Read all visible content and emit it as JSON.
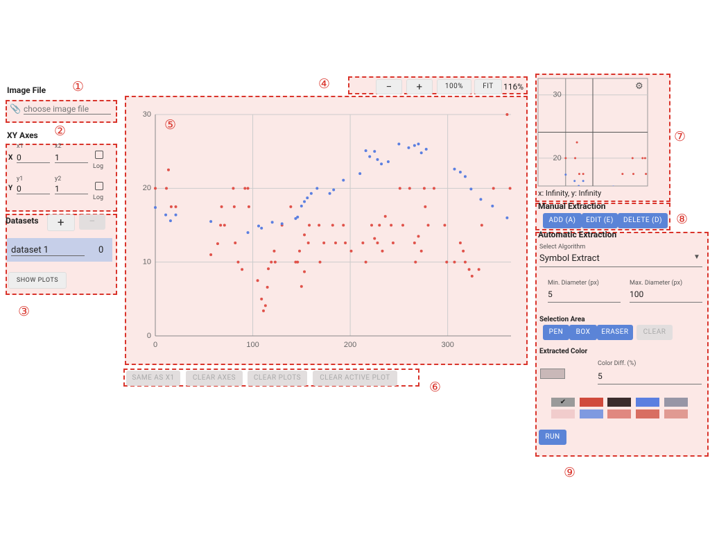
{
  "annotations": [
    "①",
    "②",
    "③",
    "④",
    "⑤",
    "⑥",
    "⑦",
    "⑧",
    "⑨"
  ],
  "image_file": {
    "title": "Image File",
    "placeholder": "choose image file"
  },
  "xy_axes": {
    "title": "XY Axes",
    "x_label": "X",
    "x1_label": "x1",
    "x1": "0",
    "x2_label": "x2",
    "x2": "1",
    "x_log": "Log",
    "y_label": "Y",
    "y1_label": "y1",
    "y1": "0",
    "y2_label": "y2",
    "y2": "1",
    "y_log": "Log"
  },
  "datasets": {
    "title": "Datasets",
    "add": "+",
    "remove": "—",
    "items": [
      {
        "name": "dataset 1",
        "count": "0"
      }
    ],
    "show_plots": "SHOW PLOTS"
  },
  "zoom": {
    "buttons": [
      "−",
      "+",
      "100%",
      "FIT"
    ],
    "level": "116%"
  },
  "plot": {
    "type": "scatter",
    "xlim": [
      0,
      365
    ],
    "ylim": [
      0,
      30
    ],
    "xticks": [
      0,
      100,
      200,
      300
    ],
    "yticks": [
      0,
      10,
      20,
      30
    ],
    "grid": true,
    "series": [
      {
        "color": "#e0524a",
        "x": [
          0,
          11.4,
          13.5,
          16.3,
          21,
          57,
          64,
          67,
          71,
          68,
          80,
          81,
          82,
          85,
          89,
          92,
          95,
          96,
          105,
          109,
          111,
          113,
          115,
          116,
          119,
          122,
          123,
          130,
          139,
          144,
          148,
          146,
          150,
          153,
          153,
          158,
          157,
          168,
          169,
          173,
          182,
          185,
          193,
          195,
          201,
          213,
          216,
          222,
          225,
          228,
          230,
          233,
          236,
          242,
          244,
          251,
          254,
          261,
          266,
          267,
          270,
          273,
          276,
          277,
          280,
          286,
          297,
          299,
          307,
          313,
          316,
          318,
          322,
          325,
          332,
          335,
          347,
          361,
          364
        ],
        "values": [
          20,
          20,
          22.5,
          17.5,
          17.5,
          11,
          12.5,
          15,
          15,
          17.5,
          20,
          17.5,
          12.6,
          10,
          9,
          20,
          20,
          17.5,
          7.5,
          5,
          3.4,
          4.1,
          6.6,
          9.1,
          10,
          11.5,
          10,
          15,
          17.5,
          10,
          11.5,
          10,
          6.7,
          8.7,
          13.7,
          15,
          12.6,
          15,
          10,
          12.6,
          15,
          12.6,
          15,
          12.6,
          11.5,
          12.6,
          10,
          15,
          13.2,
          12.6,
          15,
          11.5,
          16.2,
          15,
          12.6,
          20,
          15,
          20,
          12.6,
          10,
          13.5,
          11.5,
          20,
          17.5,
          15,
          20,
          15,
          10,
          10,
          12.6,
          11.5,
          10,
          9,
          8.1,
          9,
          15,
          20,
          30,
          20
        ]
      },
      {
        "color": "#5b7fe0",
        "x": [
          0,
          10.7,
          15.6,
          21,
          57,
          95,
          106,
          109,
          120,
          130,
          144,
          146,
          150,
          153,
          156,
          160,
          166,
          179,
          183,
          193,
          210,
          216,
          220,
          225,
          228,
          232,
          239,
          250,
          260,
          266,
          270,
          273,
          278,
          307,
          313,
          318,
          324,
          334,
          346,
          361
        ],
        "values": [
          17.4,
          16.4,
          15.6,
          16.4,
          15.5,
          14,
          14.9,
          14.6,
          15.4,
          15.2,
          15.9,
          16.1,
          17.6,
          18.2,
          18.7,
          19.3,
          20,
          19.3,
          19.8,
          21.1,
          22,
          25.1,
          24.3,
          25,
          23.9,
          23.3,
          23.6,
          26,
          25.5,
          25.8,
          26,
          24.8,
          25.3,
          22.6,
          22.2,
          21.6,
          19.9,
          18.5,
          17.6,
          16
        ]
      }
    ]
  },
  "bottom_buttons": [
    "SAME AS X1",
    "CLEAR AXES",
    "CLEAR PLOTS",
    "CLEAR ACTIVE PLOT"
  ],
  "magnifier": {
    "xlim": [
      -33,
      98
    ],
    "ylim": [
      15.6,
      32.6
    ],
    "yticks": [
      20,
      30
    ],
    "cursor": "x: Infinity, y: Infinity"
  },
  "manual": {
    "title": "Manual Extraction",
    "buttons": [
      "ADD (A)",
      "EDIT (E)",
      "DELETE (D)"
    ]
  },
  "automatic": {
    "title": "Automatic Extraction",
    "algorithm_label": "Select Algorithm",
    "algorithm": "Symbol Extract",
    "min_label": "Min. Diameter (px)",
    "min": "5",
    "max_label": "Max. Diameter (px)",
    "max": "100",
    "selection_title": "Selection Area",
    "selection_buttons": [
      "PEN",
      "BOX",
      "ERASER",
      "CLEAR"
    ],
    "color_title": "Extracted Color",
    "color_diff_label": "Color Diff. (%)",
    "color_diff": "5",
    "run": "RUN"
  }
}
